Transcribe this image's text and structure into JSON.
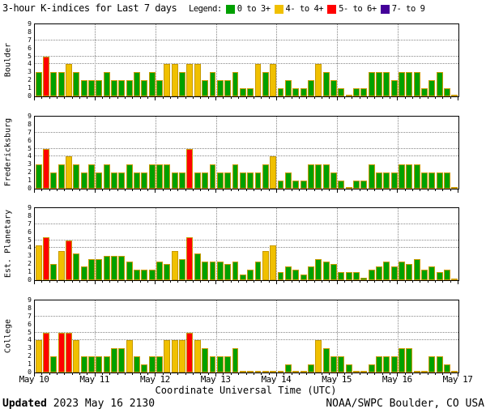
{
  "header": {
    "title": "3-hour K-indices for Last 7 days",
    "legend_label": "Legend:"
  },
  "legend": {
    "items": [
      {
        "label": "0 to 3+",
        "color": "#00a000"
      },
      {
        "label": "4- to 4+",
        "color": "#f0c000"
      },
      {
        "label": "5- to 6+",
        "color": "#ff0000"
      },
      {
        "label": "7- to 9",
        "color": "#440099"
      }
    ]
  },
  "chart_data": {
    "type": "bar",
    "title": "3-hour K-indices for Last 7 days",
    "interval_hours": 3,
    "bars_per_day": 8,
    "ylim": [
      0,
      9
    ],
    "gridlines_y": [
      4,
      5,
      7
    ],
    "grid": "dotted",
    "ytick_labels": [
      "0",
      "1",
      "2",
      "3",
      "4",
      "5",
      "6",
      "7",
      "8",
      "9"
    ],
    "day_labels": [
      "May 10",
      "May 11",
      "May 12",
      "May 13",
      "May 14",
      "May 15",
      "May 16",
      "May 17"
    ],
    "colors": {
      "green": "#00a000",
      "yellow": "#f0c000",
      "red": "#ff0000",
      "purple": "#440099",
      "bar_outline": "#c79a00"
    },
    "color_scale": [
      {
        "min": 6.5,
        "color": "#440099"
      },
      {
        "min": 4.5,
        "color": "#ff0000"
      },
      {
        "min": 3.5,
        "color": "#f0c000"
      },
      {
        "min": 0,
        "color": "#00a000"
      }
    ],
    "panels": [
      {
        "station": "Boulder",
        "values": [
          3,
          5,
          3,
          3,
          4,
          3,
          2,
          2,
          2,
          3,
          2,
          2,
          2,
          3,
          2,
          3,
          2,
          4,
          4,
          3,
          4,
          4,
          2,
          3,
          2,
          2,
          3,
          1,
          1,
          4,
          3,
          4,
          1,
          2,
          1,
          1,
          2,
          4,
          3,
          2,
          1,
          0,
          1,
          1,
          3,
          3,
          3,
          2,
          3,
          3,
          3,
          1,
          2,
          3,
          1,
          0
        ]
      },
      {
        "station": "Fredericksburg",
        "values": [
          3,
          5,
          2,
          3,
          4,
          3,
          2,
          3,
          2,
          3,
          2,
          2,
          3,
          2,
          2,
          3,
          3,
          3,
          2,
          2,
          5,
          2,
          2,
          3,
          2,
          2,
          3,
          2,
          2,
          2,
          3,
          4,
          1,
          2,
          1,
          1,
          3,
          3,
          3,
          2,
          1,
          0,
          1,
          1,
          3,
          2,
          2,
          2,
          3,
          3,
          3,
          2,
          2,
          2,
          2,
          0
        ]
      },
      {
        "station": "Est. Planetary",
        "values": [
          4.33,
          5.33,
          2,
          3.67,
          5,
          3.33,
          1.67,
          2.67,
          2.67,
          3,
          3,
          3,
          2.33,
          1.33,
          1.33,
          1.33,
          2.33,
          2,
          3.67,
          2.67,
          5.33,
          3.33,
          2.33,
          2.33,
          2.33,
          2,
          2.33,
          0.67,
          1.33,
          2.33,
          3.67,
          4.33,
          1,
          1.67,
          1.33,
          0.67,
          1.67,
          2.67,
          2.33,
          2,
          1,
          1,
          1,
          0.33,
          1.33,
          1.67,
          2.33,
          1.67,
          2.33,
          2,
          2.67,
          1.33,
          1.67,
          1,
          1.33,
          0
        ]
      },
      {
        "station": "College",
        "values": [
          4,
          5,
          2,
          5,
          5,
          4,
          2,
          2,
          2,
          2,
          3,
          3,
          4,
          2,
          1,
          2,
          2,
          4,
          4,
          4,
          5,
          4,
          3,
          2,
          2,
          2,
          3,
          0,
          0,
          0,
          0,
          0,
          0,
          1,
          0,
          0,
          1,
          4,
          3,
          2,
          2,
          1,
          0,
          0,
          1,
          2,
          2,
          2,
          3,
          3,
          0,
          0,
          2,
          2,
          1,
          0
        ]
      }
    ]
  },
  "xaxis": {
    "title": "Coordinate Universal Time (UTC)"
  },
  "footer": {
    "updated_label": "Updated",
    "updated_value": "2023 May 16 2130",
    "credit": "NOAA/SWPC Boulder, CO USA"
  }
}
